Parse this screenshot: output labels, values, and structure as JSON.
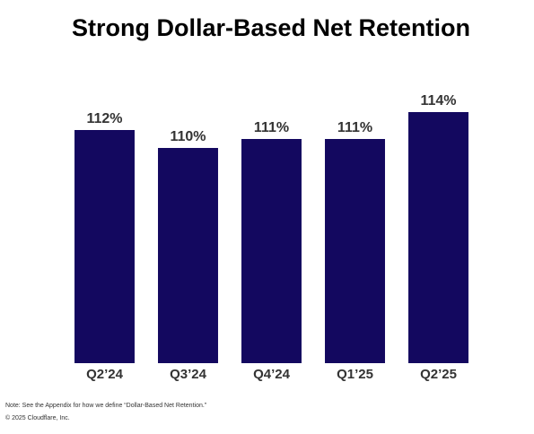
{
  "chart_data": {
    "type": "bar",
    "title": "Strong Dollar-Based Net Retention",
    "categories": [
      "Q2’24",
      "Q3’24",
      "Q4’24",
      "Q1’25",
      "Q2’25"
    ],
    "values": [
      112,
      110,
      111,
      111,
      114
    ],
    "value_labels": [
      "112%",
      "110%",
      "111%",
      "111%",
      "114%"
    ],
    "color": "#13085f",
    "ylim": [
      86,
      116
    ]
  },
  "footer": {
    "note": "Note: See the Appendix for how we define “Dollar-Based Net Retention.”",
    "copyright": "© 2025 Cloudflare, Inc."
  }
}
